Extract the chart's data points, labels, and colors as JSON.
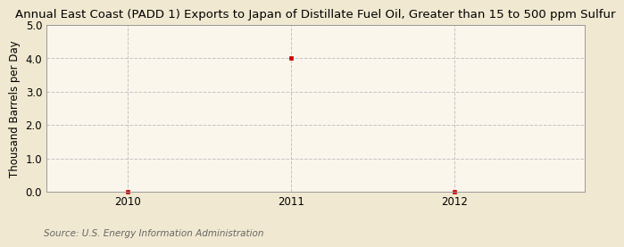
{
  "title": "Annual East Coast (PADD 1) Exports to Japan of Distillate Fuel Oil, Greater than 15 to 500 ppm Sulfur",
  "ylabel": "Thousand Barrels per Day",
  "source": "Source: U.S. Energy Information Administration",
  "x_data": [
    2010,
    2011,
    2012
  ],
  "y_data": [
    0.0,
    4.0,
    0.0
  ],
  "xlim": [
    2009.5,
    2012.8
  ],
  "ylim": [
    0.0,
    5.0
  ],
  "yticks": [
    0.0,
    1.0,
    2.0,
    3.0,
    4.0,
    5.0
  ],
  "xticks": [
    2010,
    2011,
    2012
  ],
  "background_color": "#f0e8d0",
  "plot_bg_color": "#faf6ec",
  "marker_color": "#cc0000",
  "marker": "s",
  "marker_size": 3.5,
  "grid_color": "#bbbbbb",
  "grid_style": "--",
  "title_fontsize": 9.5,
  "axis_label_fontsize": 8.5,
  "tick_fontsize": 8.5,
  "source_fontsize": 7.5
}
